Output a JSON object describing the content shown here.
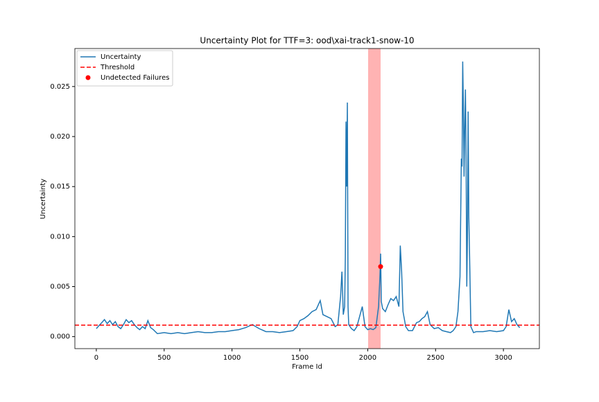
{
  "chart_data": {
    "type": "line",
    "title": "Uncertainty Plot for TTF=3: ood\\xai-track1-snow-10",
    "x_label": "Frame Id",
    "y_label": "Uncertainty",
    "x": [
      0,
      20,
      40,
      60,
      80,
      100,
      120,
      140,
      160,
      180,
      200,
      220,
      240,
      260,
      280,
      300,
      320,
      340,
      360,
      380,
      400,
      420,
      450,
      500,
      550,
      600,
      650,
      700,
      750,
      800,
      850,
      900,
      950,
      1000,
      1050,
      1100,
      1150,
      1200,
      1250,
      1300,
      1350,
      1400,
      1450,
      1480,
      1500,
      1530,
      1560,
      1590,
      1620,
      1650,
      1670,
      1700,
      1730,
      1760,
      1780,
      1800,
      1810,
      1820,
      1830,
      1835,
      1840,
      1845,
      1850,
      1855,
      1860,
      1880,
      1900,
      1920,
      1940,
      1960,
      1980,
      2000,
      2020,
      2040,
      2060,
      2080,
      2090,
      2095,
      2100,
      2110,
      2130,
      2150,
      2170,
      2190,
      2210,
      2230,
      2240,
      2250,
      2260,
      2280,
      2300,
      2330,
      2360,
      2380,
      2400,
      2420,
      2440,
      2460,
      2490,
      2520,
      2550,
      2580,
      2610,
      2630,
      2650,
      2665,
      2680,
      2690,
      2695,
      2700,
      2705,
      2710,
      2715,
      2720,
      2725,
      2730,
      2735,
      2740,
      2745,
      2750,
      2760,
      2780,
      2800,
      2850,
      2900,
      2950,
      3000,
      3020,
      3040,
      3060,
      3080,
      3100,
      3120
    ],
    "series": [
      {
        "name": "Uncertainty",
        "color": "#1f77b4",
        "values": [
          0.0008,
          0.0011,
          0.0014,
          0.0017,
          0.0013,
          0.0016,
          0.0012,
          0.0015,
          0.001,
          0.0008,
          0.0012,
          0.0017,
          0.0014,
          0.0016,
          0.0012,
          0.0009,
          0.0007,
          0.001,
          0.0008,
          0.0016,
          0.0009,
          0.0007,
          0.0003,
          0.0004,
          0.0003,
          0.0004,
          0.0003,
          0.0004,
          0.0005,
          0.0004,
          0.0004,
          0.0005,
          0.0005,
          0.0006,
          0.0007,
          0.0009,
          0.0012,
          0.0008,
          0.0005,
          0.0005,
          0.0004,
          0.0005,
          0.0006,
          0.001,
          0.0016,
          0.0018,
          0.0021,
          0.0025,
          0.0027,
          0.0036,
          0.0022,
          0.002,
          0.0018,
          0.001,
          0.0012,
          0.004,
          0.0065,
          0.0022,
          0.003,
          0.008,
          0.0215,
          0.015,
          0.0234,
          0.003,
          0.0012,
          0.0008,
          0.0006,
          0.001,
          0.002,
          0.003,
          0.001,
          0.0007,
          0.0008,
          0.0007,
          0.0009,
          0.003,
          0.006,
          0.0083,
          0.0035,
          0.0028,
          0.0025,
          0.0032,
          0.0038,
          0.0036,
          0.004,
          0.003,
          0.0091,
          0.0065,
          0.0025,
          0.001,
          0.0006,
          0.0006,
          0.0014,
          0.0015,
          0.0018,
          0.002,
          0.0025,
          0.0012,
          0.0008,
          0.0009,
          0.0006,
          0.0005,
          0.0004,
          0.0006,
          0.001,
          0.0025,
          0.006,
          0.0178,
          0.017,
          0.0275,
          0.023,
          0.016,
          0.021,
          0.0247,
          0.018,
          0.005,
          0.01,
          0.0225,
          0.012,
          0.0086,
          0.001,
          0.0004,
          0.0005,
          0.0005,
          0.0006,
          0.0005,
          0.0006,
          0.001,
          0.0027,
          0.0015,
          0.0018,
          0.0012,
          0.0009
        ]
      }
    ],
    "threshold": {
      "name": "Threshold",
      "value": 0.00115,
      "color": "#ff0000"
    },
    "failures": {
      "name": "Undetected Failures",
      "color": "#ff0000",
      "x": [
        2095
      ],
      "values": [
        0.007
      ]
    },
    "highlight_span": {
      "range": [
        2003,
        2095
      ],
      "color": "#ff8080"
    },
    "xlim": [
      -158,
      3265
    ],
    "ylim": [
      -0.0012,
      0.0288
    ],
    "xticks": [
      0,
      500,
      1000,
      1500,
      2000,
      2500,
      3000
    ],
    "yticks": [
      {
        "value": 0,
        "label": "0.000"
      },
      {
        "value": 0.005,
        "label": "0.005"
      },
      {
        "value": 0.01,
        "label": "0.010"
      },
      {
        "value": 0.015,
        "label": "0.015"
      },
      {
        "value": 0.02,
        "label": "0.020"
      },
      {
        "value": 0.025,
        "label": "0.025"
      }
    ],
    "legend": "upper left"
  }
}
